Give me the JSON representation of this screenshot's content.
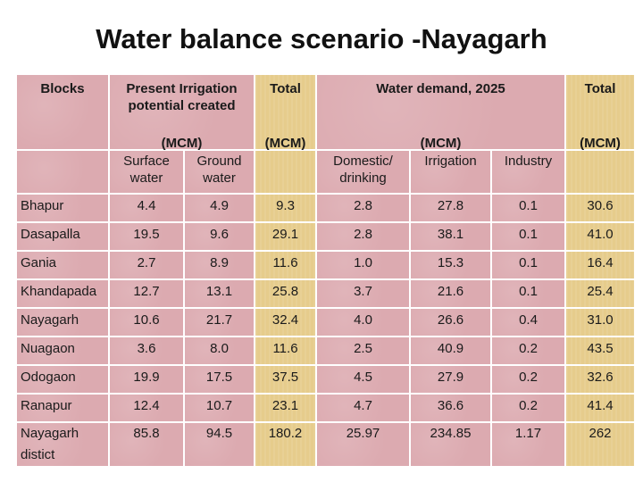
{
  "title": "Water balance scenario -Nayagarh",
  "header": {
    "blocks": "Blocks",
    "present_irrigation": "Present Irrigation potential created",
    "total1": "Total",
    "water_demand": "Water demand, 2025",
    "total2": "Total",
    "unit": "(MCM)",
    "surface_water": "Surface water",
    "ground_water": "Ground water",
    "domestic": "Domestic/ drinking",
    "irrigation": "Irrigation",
    "industry": "Industry"
  },
  "rows": [
    {
      "block": "Bhapur",
      "surface": "4.4",
      "ground": "4.9",
      "total1": "9.3",
      "domestic": "2.8",
      "irrigation": "27.8",
      "industry": "0.1",
      "total2": "30.6"
    },
    {
      "block": "Dasapalla",
      "surface": "19.5",
      "ground": "9.6",
      "total1": "29.1",
      "domestic": "2.8",
      "irrigation": "38.1",
      "industry": "0.1",
      "total2": "41.0"
    },
    {
      "block": "Gania",
      "surface": "2.7",
      "ground": "8.9",
      "total1": "11.6",
      "domestic": "1.0",
      "irrigation": "15.3",
      "industry": "0.1",
      "total2": "16.4"
    },
    {
      "block": "Khandapada",
      "surface": "12.7",
      "ground": "13.1",
      "total1": "25.8",
      "domestic": "3.7",
      "irrigation": "21.6",
      "industry": "0.1",
      "total2": "25.4"
    },
    {
      "block": "Nayagarh",
      "surface": "10.6",
      "ground": "21.7",
      "total1": "32.4",
      "domestic": "4.0",
      "irrigation": "26.6",
      "industry": "0.4",
      "total2": "31.0"
    },
    {
      "block": "Nuagaon",
      "surface": "3.6",
      "ground": "8.0",
      "total1": "11.6",
      "domestic": "2.5",
      "irrigation": "40.9",
      "industry": "0.2",
      "total2": "43.5"
    },
    {
      "block": "Odogaon",
      "surface": "19.9",
      "ground": "17.5",
      "total1": "37.5",
      "domestic": "4.5",
      "irrigation": "27.9",
      "industry": "0.2",
      "total2": "32.6"
    },
    {
      "block": "Ranapur",
      "surface": "12.4",
      "ground": "10.7",
      "total1": "23.1",
      "domestic": "4.7",
      "irrigation": "36.6",
      "industry": "0.2",
      "total2": "41.4"
    },
    {
      "block": "Nayagarh distict",
      "surface": "85.8",
      "ground": "94.5",
      "total1": "180.2",
      "domestic": "25.97",
      "irrigation": "234.85",
      "industry": "1.17",
      "total2": "262"
    }
  ]
}
